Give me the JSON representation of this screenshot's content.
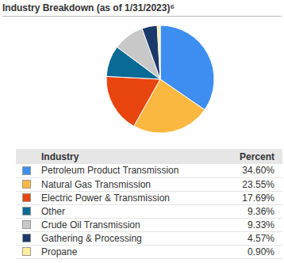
{
  "chart_data": {
    "type": "pie",
    "title": "Industry Breakdown (as of 1/31/2023)⁶",
    "table_header": [
      "Industry",
      "Percent"
    ],
    "categories": [
      "Petroleum Product Transmission",
      "Natural Gas Transmission",
      "Electric Power & Transmission",
      "Other",
      "Crude Oil Transmission",
      "Gathering & Processing",
      "Propane"
    ],
    "values": [
      34.6,
      23.55,
      17.69,
      9.36,
      9.33,
      4.57,
      0.9
    ],
    "value_labels": [
      "34.60%",
      "23.55%",
      "17.69%",
      "9.36%",
      "9.33%",
      "4.57%",
      "0.90%"
    ],
    "colors": [
      "#3d8ef0",
      "#fbb840",
      "#e8450e",
      "#0a6a96",
      "#c8c8c8",
      "#1b3a6b",
      "#ffeea0"
    ]
  }
}
